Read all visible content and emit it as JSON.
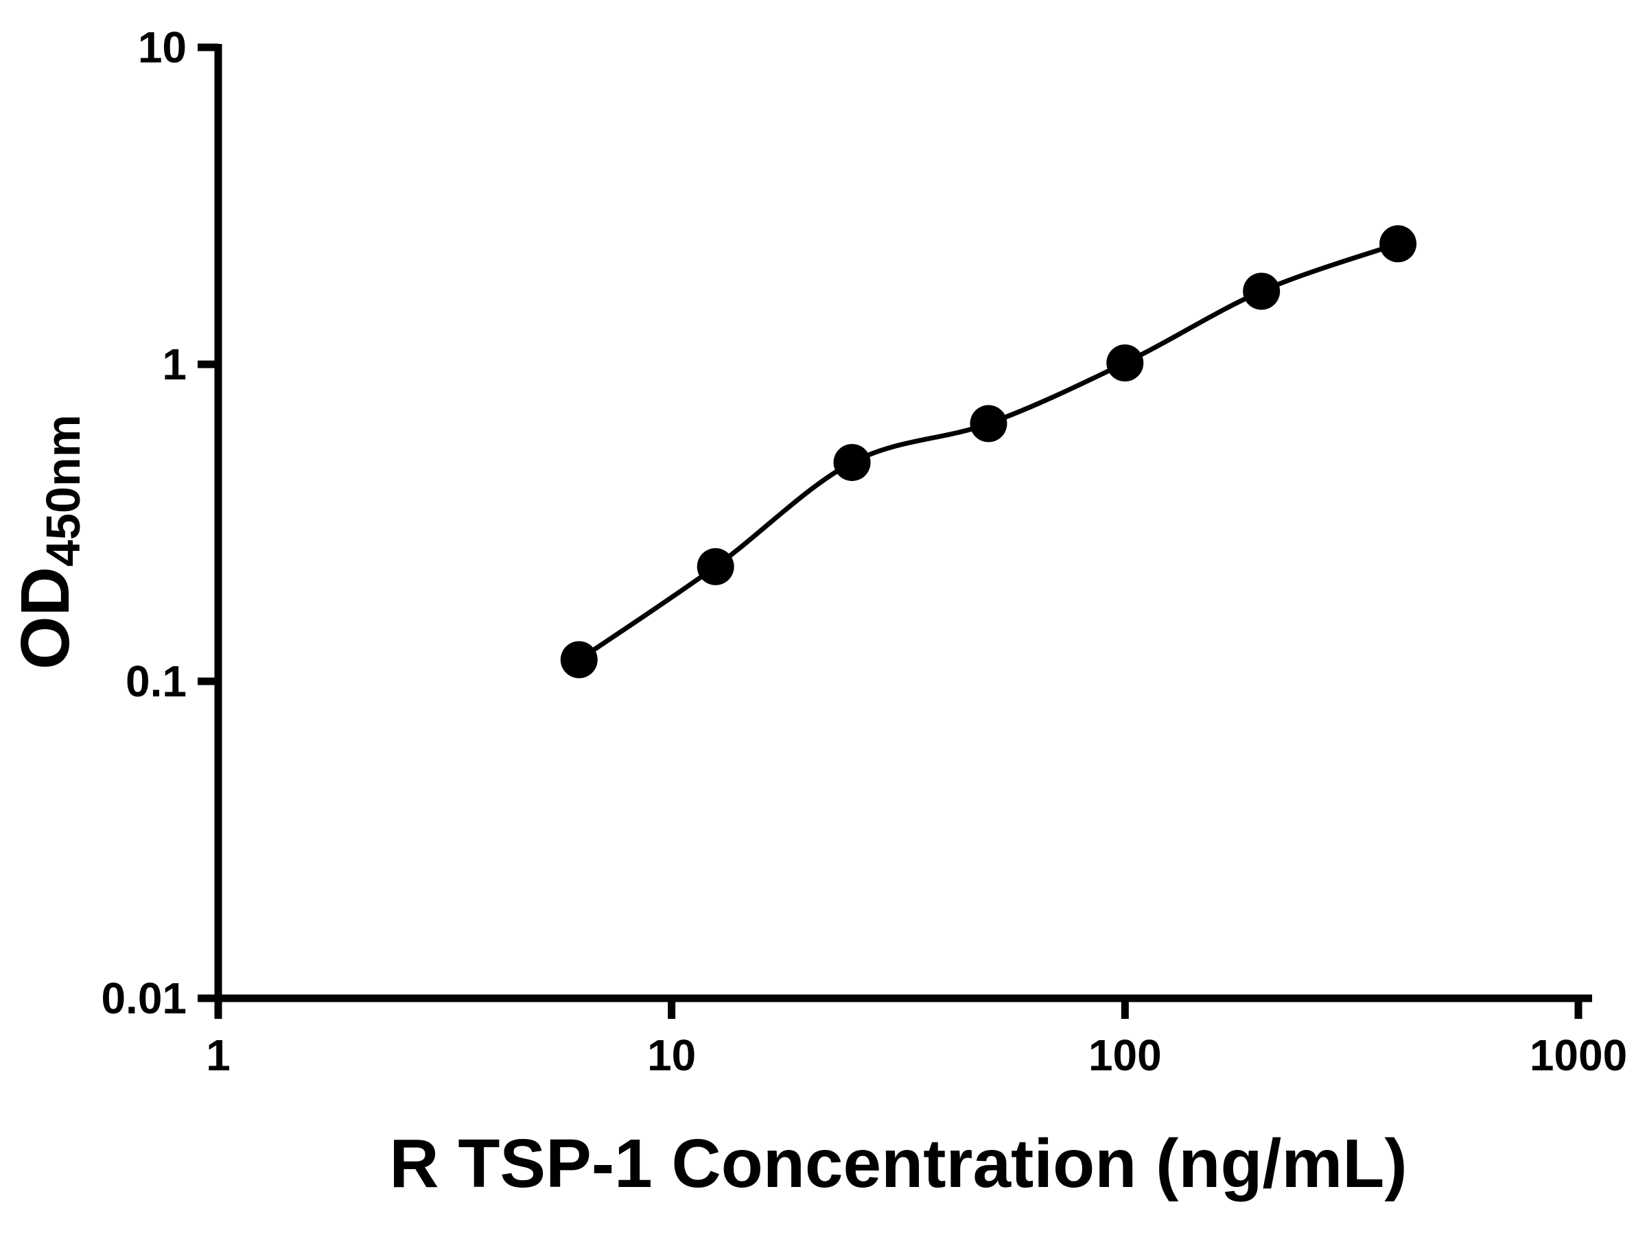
{
  "chart_data": {
    "type": "scatter",
    "title": "",
    "xlabel": "R TSP-1 Concentration (ng/mL)",
    "ylabel": {
      "main": "OD",
      "sub": "450nm"
    },
    "x_scale": "log",
    "y_scale": "log",
    "xlim": [
      1,
      1000
    ],
    "ylim": [
      0.01,
      10
    ],
    "x_ticks": [
      1,
      10,
      100,
      1000
    ],
    "x_tick_labels": [
      "1",
      "10",
      "100",
      "1000"
    ],
    "y_ticks": [
      0.01,
      0.1,
      1,
      10
    ],
    "y_tick_labels": [
      "0.01",
      "0.1",
      "1",
      "10"
    ],
    "grid": false,
    "legend": false,
    "background_color": "#ffffff",
    "axis_color": "#000000",
    "marker_color": "#000000",
    "series": [
      {
        "x": [
          6.25,
          12.5,
          25,
          50,
          100,
          200,
          400
        ],
        "y": [
          0.117,
          0.23,
          0.49,
          0.65,
          1.01,
          1.7,
          2.4
        ],
        "marker": "circle",
        "color": "#000000",
        "line": "smooth-fit"
      }
    ]
  }
}
